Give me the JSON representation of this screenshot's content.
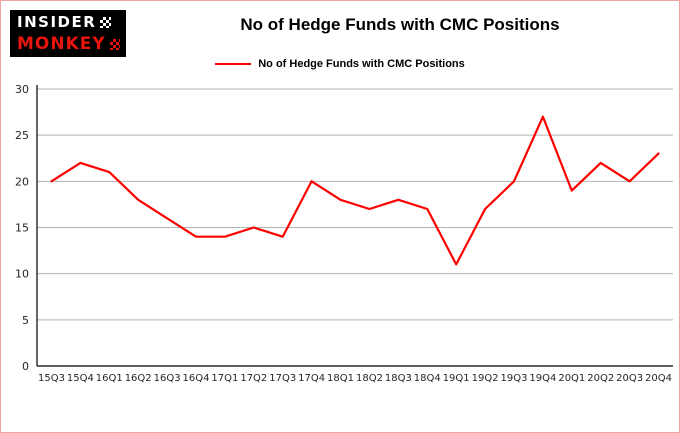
{
  "logo": {
    "line1": "INSIDER",
    "line2": "MONKEY"
  },
  "header": {
    "title": "No of Hedge Funds with CMC Positions"
  },
  "legend": {
    "label": "No of Hedge Funds with CMC Positions"
  },
  "chart_data": {
    "type": "line",
    "title": "No of Hedge Funds with CMC Positions",
    "categories": [
      "15Q3",
      "15Q4",
      "16Q1",
      "16Q2",
      "16Q3",
      "16Q4",
      "17Q1",
      "17Q2",
      "17Q3",
      "17Q4",
      "18Q1",
      "18Q2",
      "18Q3",
      "18Q4",
      "19Q1",
      "19Q2",
      "19Q3",
      "19Q4",
      "20Q1",
      "20Q2",
      "20Q3",
      "20Q4"
    ],
    "series": [
      {
        "name": "No of Hedge Funds with CMC Positions",
        "values": [
          20,
          22,
          21,
          18,
          16,
          14,
          14,
          15,
          14,
          20,
          18,
          17,
          18,
          17,
          11,
          17,
          20,
          27,
          19,
          22,
          20,
          23
        ]
      }
    ],
    "xlabel": "",
    "ylabel": "",
    "ylim": [
      0,
      30
    ],
    "yticks": [
      0,
      5,
      10,
      15,
      20,
      25,
      30
    ],
    "grid": true,
    "legend_position": "top"
  },
  "colors": {
    "line": "#ff0000",
    "grid": "#b3b3b3",
    "axis": "#000000",
    "tick_text": "#262626",
    "border": "#f0a3a1",
    "logo_bg": "#000000",
    "logo_primary": "#ffffff",
    "logo_accent": "#e8150d"
  }
}
